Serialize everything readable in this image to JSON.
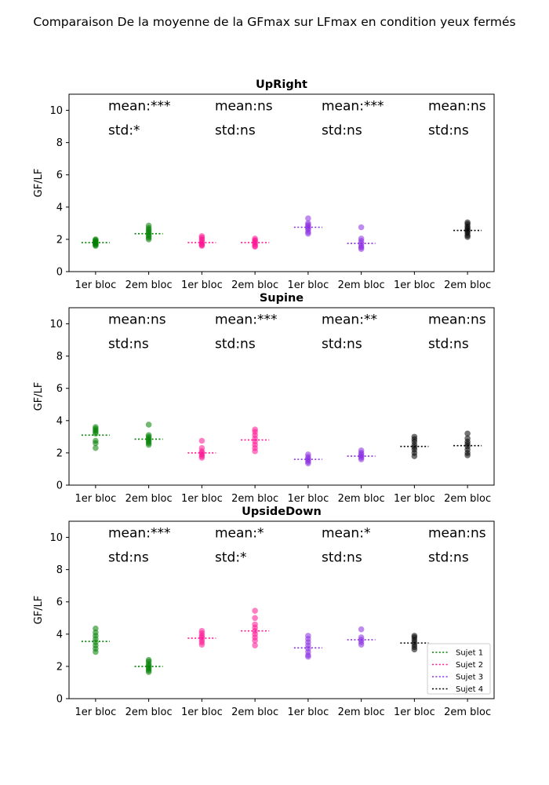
{
  "chart_data": {
    "type": "scatter",
    "title": "Comparaison De la moyenne de la GFmax sur LFmax en condition yeux fermés",
    "ylabel": "GF/LF",
    "ylim": [
      0,
      11
    ],
    "yticks": [
      0,
      2,
      4,
      6,
      8,
      10
    ],
    "categories": [
      "1er bloc",
      "2em bloc",
      "1er bloc",
      "2em bloc",
      "1er bloc",
      "2em bloc",
      "1er bloc",
      "2em bloc"
    ],
    "legend": {
      "placement": "lower-right",
      "entries": [
        {
          "name": "Sujet 1",
          "color": "#008000"
        },
        {
          "name": "Sujet 2",
          "color": "#ff1493"
        },
        {
          "name": "Sujet 3",
          "color": "#8a2be2"
        },
        {
          "name": "Sujet 4",
          "color": "#000000"
        }
      ]
    },
    "panels": [
      {
        "title": "UpRight",
        "annotations": [
          {
            "mean": "mean:***",
            "std": "std:*"
          },
          {
            "mean": "mean:ns",
            "std": "std:ns"
          },
          {
            "mean": "mean:***",
            "std": "std:ns"
          },
          {
            "mean": "mean:ns",
            "std": "std:ns"
          }
        ],
        "groups": [
          {
            "means": 1.8,
            "points": [
              1.6,
              1.65,
              1.7,
              1.75,
              1.8,
              1.85,
              1.9,
              1.95,
              2.0
            ]
          },
          {
            "means": 2.35,
            "points": [
              2.0,
              2.1,
              2.2,
              2.3,
              2.4,
              2.5,
              2.6,
              2.7,
              2.85
            ]
          },
          {
            "means": 1.8,
            "points": [
              1.6,
              1.65,
              1.7,
              1.8,
              1.9,
              2.0,
              2.1,
              2.2
            ]
          },
          {
            "means": 1.8,
            "points": [
              1.55,
              1.6,
              1.7,
              1.8,
              1.9,
              1.95,
              2.05
            ]
          },
          {
            "means": 2.75,
            "points": [
              2.35,
              2.45,
              2.6,
              2.7,
              2.8,
              2.9,
              3.0,
              3.3
            ]
          },
          {
            "means": 1.75,
            "points": [
              1.4,
              1.5,
              1.6,
              1.75,
              1.9,
              2.05,
              2.75
            ]
          },
          {
            "means": null,
            "points": []
          },
          {
            "means": 2.55,
            "points": [
              2.15,
              2.25,
              2.4,
              2.5,
              2.6,
              2.7,
              2.8,
              2.95,
              3.05
            ]
          }
        ]
      },
      {
        "title": "Supine",
        "annotations": [
          {
            "mean": "mean:ns",
            "std": "std:ns"
          },
          {
            "mean": "mean:***",
            "std": "std:ns"
          },
          {
            "mean": "mean:**",
            "std": "std:ns"
          },
          {
            "mean": "mean:ns",
            "std": "std:ns"
          }
        ],
        "groups": [
          {
            "means": 3.1,
            "points": [
              2.3,
              2.6,
              2.75,
              3.2,
              3.3,
              3.4,
              3.5,
              3.6
            ]
          },
          {
            "means": 2.85,
            "points": [
              2.5,
              2.6,
              2.7,
              2.8,
              2.9,
              3.0,
              3.1,
              3.75
            ]
          },
          {
            "means": 2.0,
            "points": [
              1.7,
              1.8,
              1.9,
              2.0,
              2.1,
              2.3,
              2.75
            ]
          },
          {
            "means": 2.8,
            "points": [
              2.1,
              2.3,
              2.5,
              2.7,
              2.9,
              3.1,
              3.3,
              3.45
            ]
          },
          {
            "means": 1.6,
            "points": [
              1.35,
              1.45,
              1.55,
              1.65,
              1.75,
              1.9
            ]
          },
          {
            "means": 1.8,
            "points": [
              1.6,
              1.7,
              1.8,
              1.9,
              2.0,
              2.15
            ]
          },
          {
            "means": 2.4,
            "points": [
              1.8,
              2.0,
              2.2,
              2.35,
              2.5,
              2.7,
              2.85,
              3.0
            ]
          },
          {
            "means": 2.45,
            "points": [
              1.85,
              2.0,
              2.2,
              2.4,
              2.55,
              2.7,
              2.9,
              3.2
            ]
          }
        ]
      },
      {
        "title": "UpsideDown",
        "annotations": [
          {
            "mean": "mean:***",
            "std": "std:ns"
          },
          {
            "mean": "mean:*",
            "std": "std:*"
          },
          {
            "mean": "mean:*",
            "std": "std:ns"
          },
          {
            "mean": "mean:ns",
            "std": "std:ns"
          }
        ],
        "groups": [
          {
            "means": 3.55,
            "points": [
              2.9,
              3.1,
              3.3,
              3.5,
              3.7,
              3.9,
              4.1,
              4.35
            ]
          },
          {
            "means": 2.0,
            "points": [
              1.65,
              1.75,
              1.85,
              1.95,
              2.05,
              2.15,
              2.3,
              2.4
            ]
          },
          {
            "means": 3.75,
            "points": [
              3.35,
              3.5,
              3.65,
              3.8,
              3.9,
              4.05,
              4.2
            ]
          },
          {
            "means": 4.2,
            "points": [
              3.3,
              3.6,
              3.8,
              4.0,
              4.2,
              4.4,
              4.6,
              5.0,
              5.45
            ]
          },
          {
            "means": 3.15,
            "points": [
              2.6,
              2.7,
              2.9,
              3.1,
              3.3,
              3.5,
              3.7,
              3.9
            ]
          },
          {
            "means": 3.65,
            "points": [
              3.35,
              3.5,
              3.65,
              3.8,
              4.3
            ]
          },
          {
            "means": 3.45,
            "points": [
              3.05,
              3.2,
              3.35,
              3.5,
              3.65,
              3.8,
              3.9
            ]
          },
          {
            "means": null,
            "points": []
          }
        ]
      }
    ]
  }
}
